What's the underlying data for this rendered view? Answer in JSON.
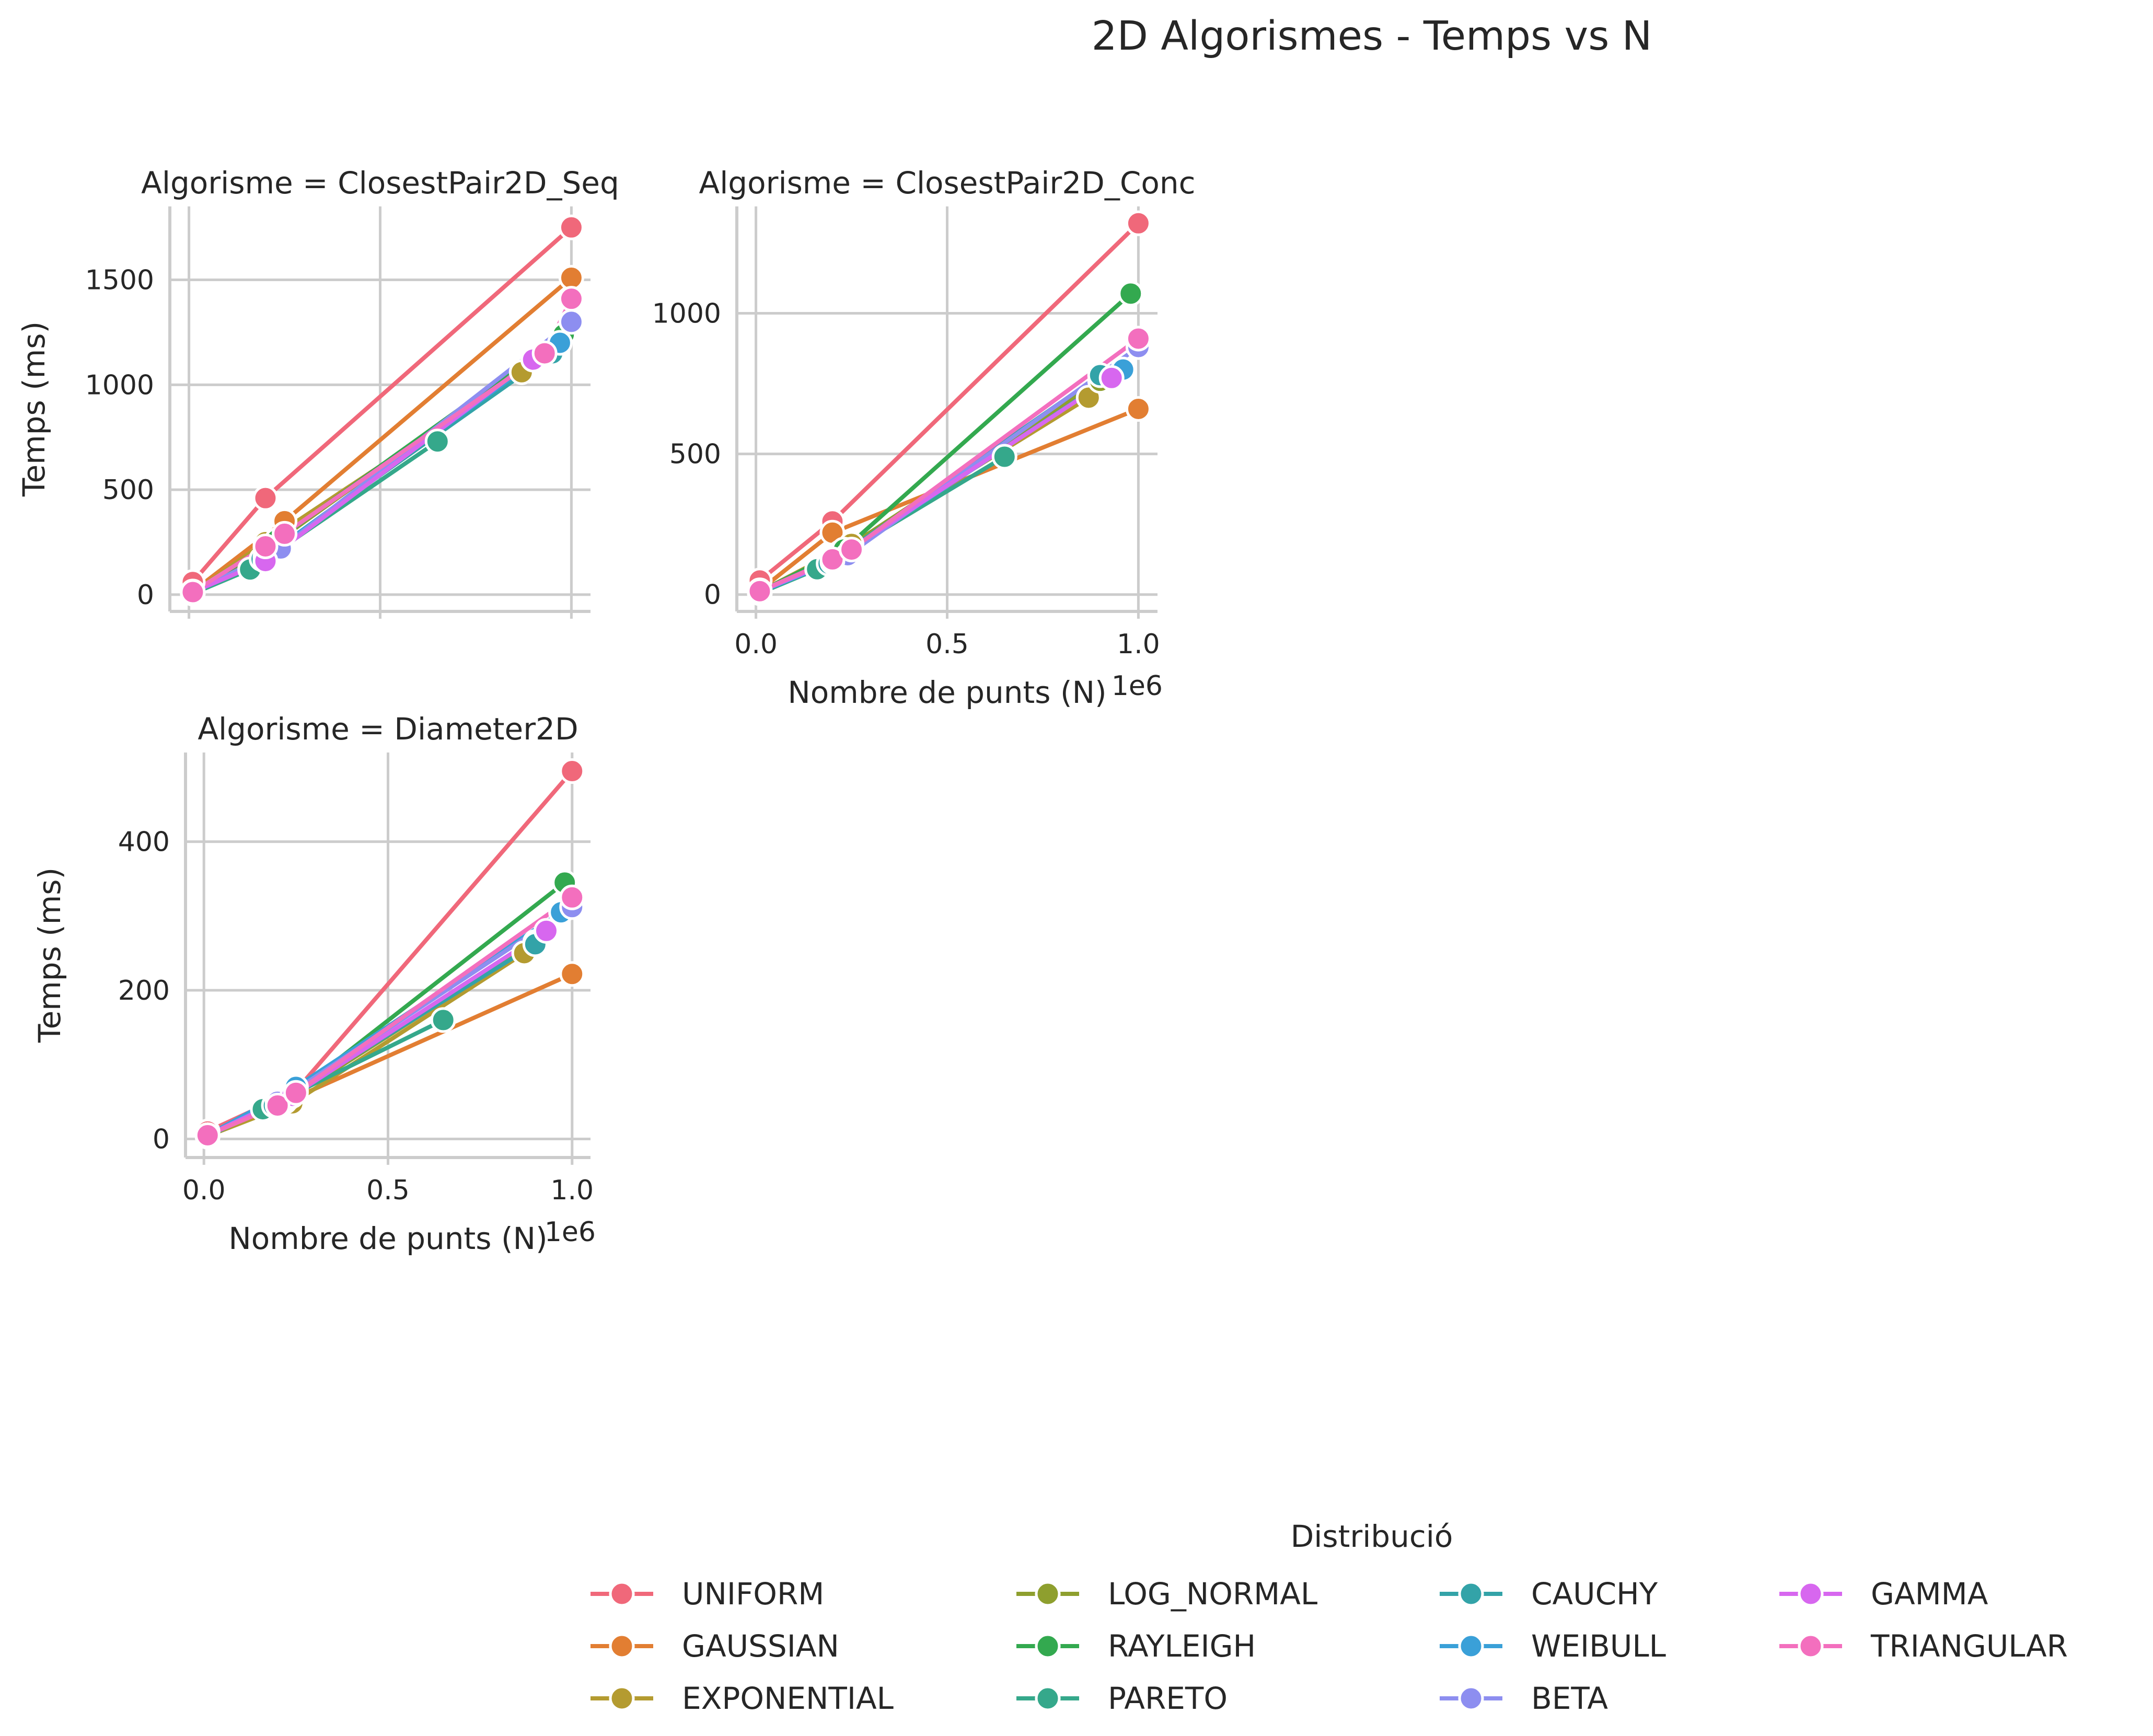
{
  "chart_data": {
    "type": "line",
    "title": "2D Algorismes - Temps vs N",
    "legend_title": "Distribució",
    "legend_position": "bottom-center",
    "grid": true,
    "series_colors": {
      "UNIFORM": "#f0687a",
      "GAUSSIAN": "#e27e32",
      "EXPONENTIAL": "#b49b30",
      "LOG_NORMAL": "#8e9f2e",
      "RAYLEIGH": "#33a94f",
      "PARETO": "#35a88b",
      "CAUCHY": "#33a3a8",
      "WEIBULL": "#3aa0d8",
      "BETA": "#8d8ef0",
      "GAMMA": "#d767ef",
      "TRIANGULAR": "#f36fbe"
    },
    "panels": [
      {
        "title": "Algorisme = ClosestPair2D_Seq",
        "ylabel": "Temps (ms)",
        "xlabel": "",
        "x_offset_label": "",
        "xlim": [
          -0.05,
          1.05
        ],
        "ylim": [
          -80,
          1850
        ],
        "xticks": [
          0.0,
          0.5,
          1.0
        ],
        "xtick_labels": [],
        "yticks": [
          0,
          500,
          1000,
          1500
        ],
        "ytick_labels": [
          "0",
          "500",
          "1000",
          "1500"
        ],
        "series": [
          {
            "name": "UNIFORM",
            "points": [
              [
                0.01,
                60
              ],
              [
                0.2,
                460
              ],
              [
                1.0,
                1750
              ]
            ]
          },
          {
            "name": "GAUSSIAN",
            "points": [
              [
                0.01,
                15
              ],
              [
                0.25,
                350
              ],
              [
                1.0,
                1510
              ]
            ]
          },
          {
            "name": "EXPONENTIAL",
            "points": [
              [
                0.01,
                10
              ],
              [
                0.2,
                250
              ],
              [
                0.87,
                1060
              ]
            ]
          },
          {
            "name": "LOG_NORMAL",
            "points": [
              [
                0.01,
                8
              ],
              [
                0.22,
                240
              ],
              [
                0.9,
                1130
              ]
            ]
          },
          {
            "name": "RAYLEIGH",
            "points": [
              [
                0.01,
                10
              ],
              [
                0.23,
                260
              ],
              [
                0.98,
                1240
              ]
            ]
          },
          {
            "name": "PARETO",
            "points": [
              [
                0.01,
                5
              ],
              [
                0.16,
                120
              ],
              [
                0.65,
                730
              ]
            ]
          },
          {
            "name": "CAUCHY",
            "points": [
              [
                0.01,
                8
              ],
              [
                0.19,
                170
              ],
              [
                0.95,
                1150
              ]
            ]
          },
          {
            "name": "WEIBULL",
            "points": [
              [
                0.01,
                10
              ],
              [
                0.2,
                180
              ],
              [
                0.97,
                1200
              ]
            ]
          },
          {
            "name": "BETA",
            "points": [
              [
                0.01,
                10
              ],
              [
                0.24,
                220
              ],
              [
                1.0,
                1300
              ]
            ]
          },
          {
            "name": "GAMMA",
            "points": [
              [
                0.01,
                12
              ],
              [
                0.2,
                160
              ],
              [
                0.9,
                1120
              ]
            ]
          },
          {
            "name": "TRIANGULAR",
            "points": [
              [
                0.01,
                12
              ],
              [
                0.2,
                230
              ],
              [
                0.25,
                290
              ],
              [
                0.93,
                1150
              ],
              [
                1.0,
                1410
              ]
            ]
          }
        ]
      },
      {
        "title": "Algorisme = ClosestPair2D_Conc",
        "ylabel": "",
        "xlabel": "Nombre de punts (N)",
        "x_offset_label": "1e6",
        "xlim": [
          -0.05,
          1.05
        ],
        "ylim": [
          -60,
          1380
        ],
        "xticks": [
          0.0,
          0.5,
          1.0
        ],
        "xtick_labels": [
          "0.0",
          "0.5",
          "1.0"
        ],
        "yticks": [
          0,
          500,
          1000
        ],
        "ytick_labels": [
          "0",
          "500",
          "1000"
        ],
        "series": [
          {
            "name": "UNIFORM",
            "points": [
              [
                0.01,
                50
              ],
              [
                0.2,
                260
              ],
              [
                1.0,
                1320
              ]
            ]
          },
          {
            "name": "GAUSSIAN",
            "points": [
              [
                0.01,
                15
              ],
              [
                0.2,
                220
              ],
              [
                1.0,
                660
              ]
            ]
          },
          {
            "name": "EXPONENTIAL",
            "points": [
              [
                0.01,
                10
              ],
              [
                0.25,
                180
              ],
              [
                0.87,
                700
              ]
            ]
          },
          {
            "name": "LOG_NORMAL",
            "points": [
              [
                0.01,
                8
              ],
              [
                0.22,
                150
              ],
              [
                0.9,
                760
              ]
            ]
          },
          {
            "name": "RAYLEIGH",
            "points": [
              [
                0.01,
                10
              ],
              [
                0.23,
                160
              ],
              [
                0.98,
                1070
              ]
            ]
          },
          {
            "name": "PARETO",
            "points": [
              [
                0.01,
                5
              ],
              [
                0.16,
                90
              ],
              [
                0.65,
                490
              ]
            ]
          },
          {
            "name": "CAUCHY",
            "points": [
              [
                0.01,
                8
              ],
              [
                0.19,
                110
              ],
              [
                0.9,
                780
              ]
            ]
          },
          {
            "name": "WEIBULL",
            "points": [
              [
                0.01,
                10
              ],
              [
                0.2,
                115
              ],
              [
                0.96,
                800
              ]
            ]
          },
          {
            "name": "BETA",
            "points": [
              [
                0.01,
                10
              ],
              [
                0.24,
                140
              ],
              [
                1.0,
                880
              ]
            ]
          },
          {
            "name": "GAMMA",
            "points": [
              [
                0.01,
                12
              ],
              [
                0.2,
                120
              ],
              [
                0.93,
                770
              ]
            ]
          },
          {
            "name": "TRIANGULAR",
            "points": [
              [
                0.01,
                12
              ],
              [
                0.2,
                125
              ],
              [
                0.25,
                160
              ],
              [
                1.0,
                910
              ]
            ]
          }
        ]
      },
      {
        "title": "Algorisme = Diameter2D",
        "ylabel": "Temps (ms)",
        "xlabel": "Nombre de punts (N)",
        "x_offset_label": "1e6",
        "xlim": [
          -0.05,
          1.05
        ],
        "ylim": [
          -25,
          520
        ],
        "xticks": [
          0.0,
          0.5,
          1.0
        ],
        "xtick_labels": [
          "0.0",
          "0.5",
          "1.0"
        ],
        "yticks": [
          0,
          200,
          400
        ],
        "ytick_labels": [
          "0",
          "200",
          "400"
        ],
        "series": [
          {
            "name": "UNIFORM",
            "points": [
              [
                0.01,
                10
              ],
              [
                0.25,
                65
              ],
              [
                1.0,
                495
              ]
            ]
          },
          {
            "name": "GAUSSIAN",
            "points": [
              [
                0.01,
                5
              ],
              [
                0.2,
                45
              ],
              [
                1.0,
                222
              ]
            ]
          },
          {
            "name": "EXPONENTIAL",
            "points": [
              [
                0.01,
                4
              ],
              [
                0.24,
                48
              ],
              [
                0.87,
                250
              ]
            ]
          },
          {
            "name": "LOG_NORMAL",
            "points": [
              [
                0.01,
                4
              ],
              [
                0.22,
                50
              ],
              [
                0.9,
                265
              ]
            ]
          },
          {
            "name": "RAYLEIGH",
            "points": [
              [
                0.01,
                5
              ],
              [
                0.23,
                55
              ],
              [
                0.98,
                345
              ]
            ]
          },
          {
            "name": "PARETO",
            "points": [
              [
                0.01,
                3
              ],
              [
                0.16,
                40
              ],
              [
                0.65,
                160
              ]
            ]
          },
          {
            "name": "CAUCHY",
            "points": [
              [
                0.01,
                4
              ],
              [
                0.19,
                45
              ],
              [
                0.9,
                262
              ]
            ]
          },
          {
            "name": "WEIBULL",
            "points": [
              [
                0.01,
                5
              ],
              [
                0.25,
                70
              ],
              [
                0.97,
                305
              ]
            ]
          },
          {
            "name": "BETA",
            "points": [
              [
                0.01,
                5
              ],
              [
                0.2,
                50
              ],
              [
                1.0,
                312
              ]
            ]
          },
          {
            "name": "GAMMA",
            "points": [
              [
                0.01,
                5
              ],
              [
                0.24,
                58
              ],
              [
                0.93,
                280
              ]
            ]
          },
          {
            "name": "TRIANGULAR",
            "points": [
              [
                0.01,
                5
              ],
              [
                0.2,
                45
              ],
              [
                0.25,
                62
              ],
              [
                1.0,
                325
              ]
            ]
          }
        ]
      }
    ]
  }
}
